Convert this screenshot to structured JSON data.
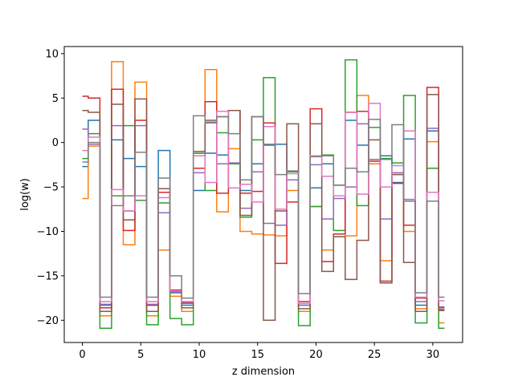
{
  "chart_data": {
    "type": "line",
    "drawstyle": "steps-mid",
    "title": "",
    "xlabel": "z dimension",
    "ylabel": "log(w)",
    "xlim": [
      -1.55,
      32.55
    ],
    "ylim": [
      -22.5,
      10.8
    ],
    "xticks": [
      0,
      5,
      10,
      15,
      20,
      25,
      30
    ],
    "yticks": [
      10,
      5,
      0,
      -5,
      -10,
      -15,
      -20
    ],
    "grid": false,
    "legend": "none",
    "x": [
      0,
      1,
      2,
      3,
      4,
      5,
      6,
      7,
      8,
      9,
      10,
      11,
      12,
      13,
      14,
      15,
      16,
      17,
      18,
      19,
      20,
      21,
      22,
      23,
      24,
      25,
      26,
      27,
      28,
      29,
      30,
      31
    ],
    "series": [
      {
        "color": "#1f77b4",
        "values": [
          -2.7,
          2.5,
          -18.3,
          0.3,
          -1.8,
          -2.7,
          -18.3,
          -0.9,
          -16.9,
          -18.3,
          -5.4,
          -1.2,
          -1.4,
          -2.4,
          -5.4,
          -2.4,
          -0.3,
          -0.2,
          -4.2,
          -18.3,
          -5.1,
          -2.4,
          -4.8,
          2.5,
          -0.3,
          -2.4,
          -1.5,
          -4.5,
          0.4,
          -18.3,
          1.3,
          -18.8
        ]
      },
      {
        "color": "#ff7f0e",
        "values": [
          -6.3,
          -0.4,
          -19.5,
          9.1,
          -11.5,
          6.8,
          -19.5,
          -12.1,
          -17.3,
          -19.0,
          -1.2,
          8.2,
          -7.8,
          -0.7,
          -10.0,
          -10.3,
          -10.4,
          -10.5,
          -5.4,
          -19.0,
          -7.2,
          -12.1,
          -10.3,
          -10.5,
          5.3,
          -2.4,
          -13.3,
          -3.6,
          -10.0,
          -18.7,
          0.1,
          -20.3
        ]
      },
      {
        "color": "#2ca02c",
        "values": [
          -1.8,
          1.0,
          -20.9,
          -6.0,
          1.9,
          -6.5,
          -20.5,
          -6.8,
          -19.8,
          -20.5,
          -1.2,
          -5.4,
          1.1,
          -2.4,
          -8.4,
          0.3,
          7.3,
          -7.5,
          -3.3,
          -20.6,
          -7.2,
          -1.4,
          -9.9,
          9.3,
          -7.1,
          1.7,
          -1.8,
          -2.3,
          5.3,
          -20.3,
          -2.9,
          -20.9
        ]
      },
      {
        "color": "#d62728",
        "values": [
          5.2,
          5.0,
          -18.6,
          6.0,
          -9.9,
          2.5,
          -18.3,
          -5.6,
          -16.6,
          -18.0,
          -2.9,
          4.6,
          -5.7,
          3.6,
          -5.7,
          -5.5,
          2.2,
          -13.6,
          -6.7,
          -17.9,
          3.8,
          -13.4,
          -10.3,
          3.4,
          3.5,
          -2.1,
          -15.6,
          -4.6,
          -9.3,
          -17.5,
          6.2,
          -18.6
        ]
      },
      {
        "color": "#9467bd",
        "values": [
          1.5,
          -0.2,
          -18.2,
          1.9,
          -7.7,
          1.9,
          -18.2,
          -7.9,
          -16.8,
          -18.1,
          -3.4,
          2.3,
          -2.4,
          -2.3,
          -7.4,
          -3.3,
          -9.1,
          -9.3,
          -4.2,
          -18.3,
          -2.5,
          -8.6,
          -6.3,
          -5.0,
          2.1,
          -1.9,
          -8.6,
          -3.4,
          -6.4,
          -17.9,
          1.6,
          -18.5
        ]
      },
      {
        "color": "#8c564b",
        "values": [
          3.6,
          3.4,
          -19.0,
          4.3,
          -8.7,
          4.9,
          -19.0,
          -5.2,
          -16.7,
          -18.6,
          -1.0,
          2.5,
          2.9,
          3.6,
          -8.2,
          2.9,
          -20.0,
          -7.7,
          2.1,
          -18.7,
          2.1,
          -14.5,
          -10.6,
          -15.4,
          -11.0,
          0.3,
          -15.8,
          -3.6,
          -13.5,
          -19.0,
          5.4,
          -18.9
        ]
      },
      {
        "color": "#e377c2",
        "values": [
          -0.9,
          0.6,
          -17.9,
          -5.3,
          -7.7,
          -6.0,
          -17.9,
          -6.2,
          -16.7,
          -17.9,
          -1.5,
          -4.5,
          3.5,
          -5.1,
          -4.7,
          -6.7,
          1.8,
          -7.5,
          -3.5,
          -18.1,
          -1.5,
          -3.8,
          -6.0,
          3.4,
          -5.8,
          4.4,
          -5.0,
          -2.6,
          1.3,
          -17.4,
          -5.6,
          -17.8
        ]
      },
      {
        "color": "#7f7f7f",
        "values": [
          -2.2,
          0.0,
          -17.4,
          -7.1,
          -6.0,
          -1.1,
          -17.4,
          -4.0,
          -15.0,
          -17.5,
          3.0,
          2.2,
          2.9,
          1.0,
          -4.2,
          2.9,
          -0.2,
          -3.6,
          -3.2,
          -17.0,
          -1.6,
          -1.5,
          -4.8,
          -2.9,
          -3.3,
          2.6,
          -1.9,
          2.0,
          -6.6,
          -16.9,
          -6.6,
          -17.4
        ]
      }
    ]
  }
}
